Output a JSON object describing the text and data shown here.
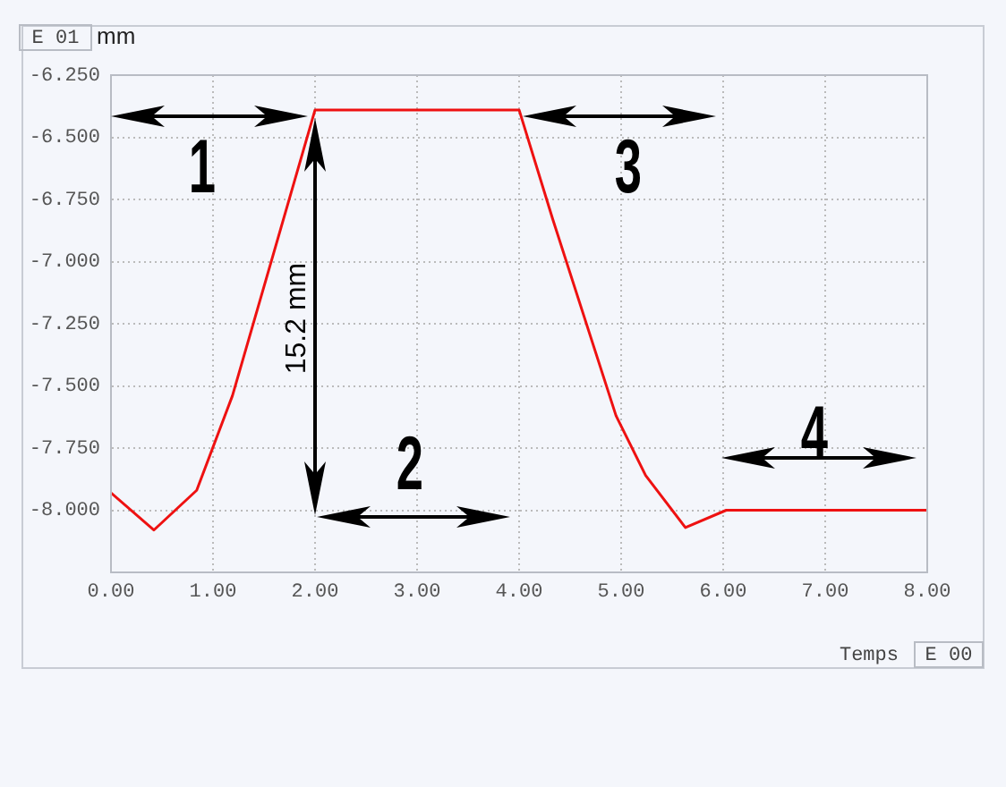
{
  "chart_data": {
    "type": "line",
    "xlabel": "Temps",
    "ylabel": "mm",
    "annotations": [
      "E 01",
      "E 00",
      "1",
      "2",
      "3",
      "4",
      "15.2 mm"
    ],
    "x": [
      0,
      0.42,
      0.84,
      1.19,
      2.0,
      4.0,
      4.33,
      4.95,
      5.24,
      5.63,
      6.03,
      8.0
    ],
    "series": [
      {
        "color": "#ee1111",
        "values": [
          -7.93,
          -8.08,
          -7.92,
          -7.54,
          -6.39,
          -6.39,
          -6.83,
          -7.62,
          -7.86,
          -8.07,
          -8.0,
          -8.0
        ]
      }
    ],
    "xlim": [
      0,
      8
    ],
    "ylim": [
      -8.25,
      -6.25
    ],
    "xticks": [
      {
        "value": 0,
        "label": "0.00"
      },
      {
        "value": 1,
        "label": "1.00"
      },
      {
        "value": 2,
        "label": "2.00"
      },
      {
        "value": 3,
        "label": "3.00"
      },
      {
        "value": 4,
        "label": "4.00"
      },
      {
        "value": 5,
        "label": "5.00"
      },
      {
        "value": 6,
        "label": "6.00"
      },
      {
        "value": 7,
        "label": "7.00"
      },
      {
        "value": 8,
        "label": "8.00"
      }
    ],
    "yticks": [
      {
        "value": -8,
        "label": "-8.000"
      },
      {
        "value": -7.75,
        "label": "-7.750"
      },
      {
        "value": -7.5,
        "label": "-7.500"
      },
      {
        "value": -7.25,
        "label": "-7.250"
      },
      {
        "value": -7,
        "label": "-7.000"
      },
      {
        "value": -6.75,
        "label": "-6.750"
      },
      {
        "value": -6.5,
        "label": "-6.500"
      },
      {
        "value": -6.25,
        "label": "-6.250"
      }
    ],
    "grid": true,
    "legend": false,
    "marker": "none",
    "line_style": "solid"
  }
}
